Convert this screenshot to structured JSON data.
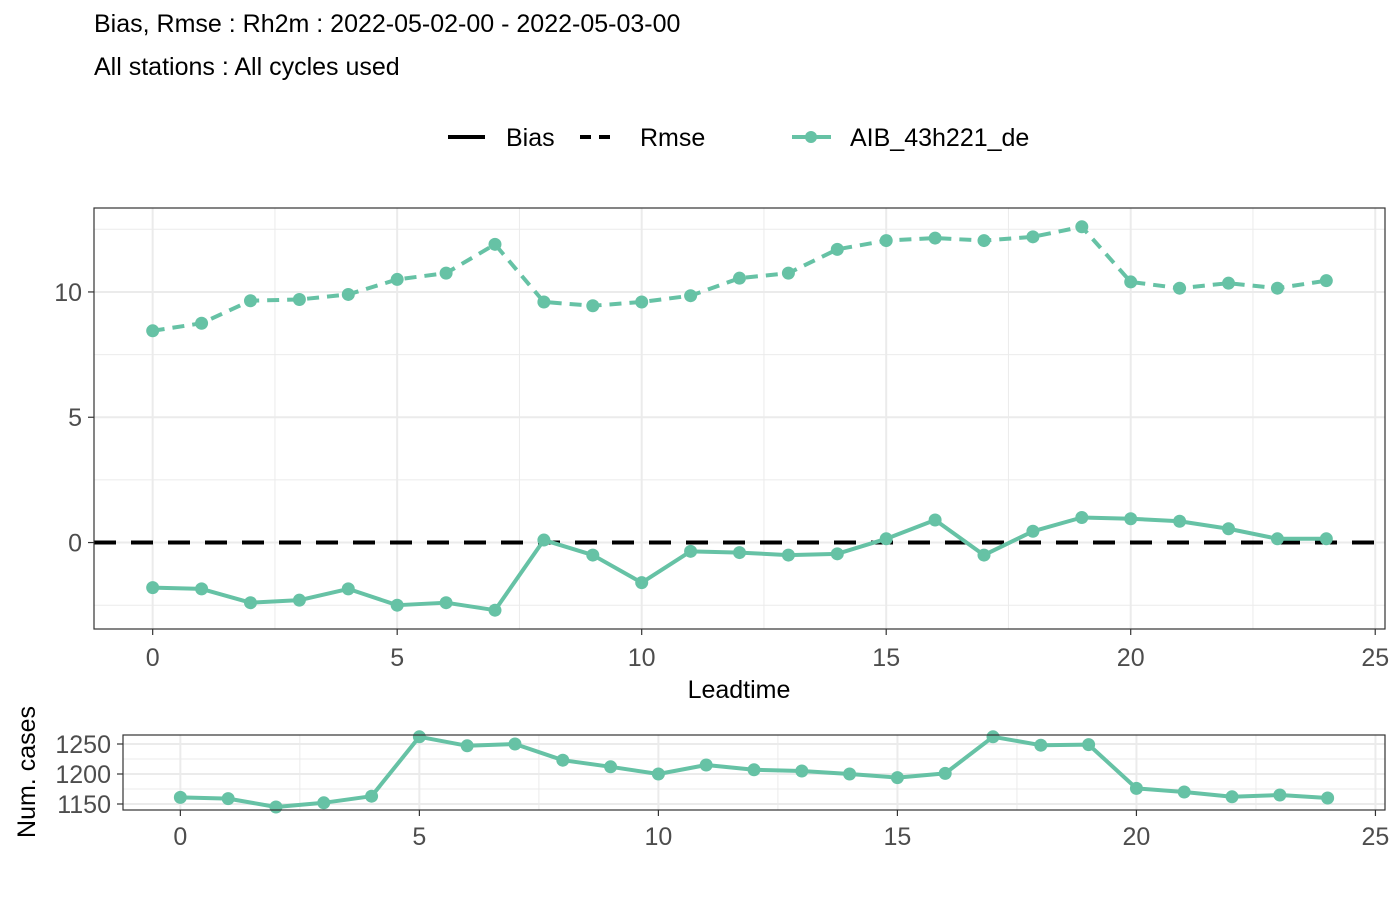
{
  "title": "Bias, Rmse : Rh2m : 2022-05-02-00 - 2022-05-03-00",
  "subtitle": "All stations : All cycles used",
  "legend": {
    "bias_label": "Bias",
    "rmse_label": "Rmse",
    "model_label": "AIB_43h221_de"
  },
  "colors": {
    "series": "#66c2a5",
    "zero_line": "#000000",
    "grid": "#ebebeb",
    "panel_border": "#333333"
  },
  "chart_data": [
    {
      "type": "line",
      "xlabel": "Leadtime",
      "ylabel": "",
      "xlim": [
        -1.2,
        25.2
      ],
      "ylim": [
        -3.45,
        13.35
      ],
      "xticks": [
        0,
        5,
        10,
        15,
        20,
        25
      ],
      "yticks": [
        0,
        5,
        10
      ],
      "grid": true,
      "legend_position": "top",
      "x": [
        0,
        1,
        2,
        3,
        4,
        5,
        6,
        7,
        8,
        9,
        10,
        11,
        12,
        13,
        14,
        15,
        16,
        17,
        18,
        19,
        20,
        21,
        22,
        23,
        24
      ],
      "series": [
        {
          "name": "Rmse",
          "model": "AIB_43h221_de",
          "linestyle": "dashed",
          "values": [
            8.45,
            8.75,
            9.65,
            9.7,
            9.9,
            10.5,
            10.75,
            11.9,
            9.6,
            9.45,
            9.6,
            9.85,
            10.55,
            10.75,
            11.7,
            12.05,
            12.15,
            12.05,
            12.2,
            12.6,
            10.4,
            10.15,
            10.35,
            10.15,
            10.45
          ]
        },
        {
          "name": "Bias",
          "model": "AIB_43h221_de",
          "linestyle": "solid",
          "values": [
            -1.8,
            -1.85,
            -2.4,
            -2.3,
            -1.85,
            -2.5,
            -2.4,
            -2.7,
            0.1,
            -0.5,
            -1.6,
            -0.35,
            -0.4,
            -0.5,
            -0.45,
            0.15,
            0.9,
            -0.5,
            0.45,
            1.0,
            0.95,
            0.85,
            0.55,
            0.15,
            0.15
          ]
        }
      ],
      "reference_line": {
        "y": 0,
        "linestyle": "dashed"
      }
    },
    {
      "type": "line",
      "xlabel": "",
      "ylabel": "Num. cases",
      "xlim": [
        -1.2,
        25.2
      ],
      "ylim": [
        1140,
        1265
      ],
      "xticks": [
        0,
        5,
        10,
        15,
        20,
        25
      ],
      "yticks": [
        1150,
        1200,
        1250
      ],
      "grid": true,
      "x": [
        0,
        1,
        2,
        3,
        4,
        5,
        6,
        7,
        8,
        9,
        10,
        11,
        12,
        13,
        14,
        15,
        16,
        17,
        18,
        19,
        20,
        21,
        22,
        23,
        24
      ],
      "series": [
        {
          "name": "AIB_43h221_de",
          "values": [
            1161,
            1159,
            1145,
            1152,
            1163,
            1262,
            1247,
            1250,
            1223,
            1212,
            1200,
            1215,
            1207,
            1205,
            1200,
            1194,
            1201,
            1262,
            1248,
            1249,
            1176,
            1170,
            1162,
            1165,
            1160
          ]
        }
      ]
    }
  ]
}
